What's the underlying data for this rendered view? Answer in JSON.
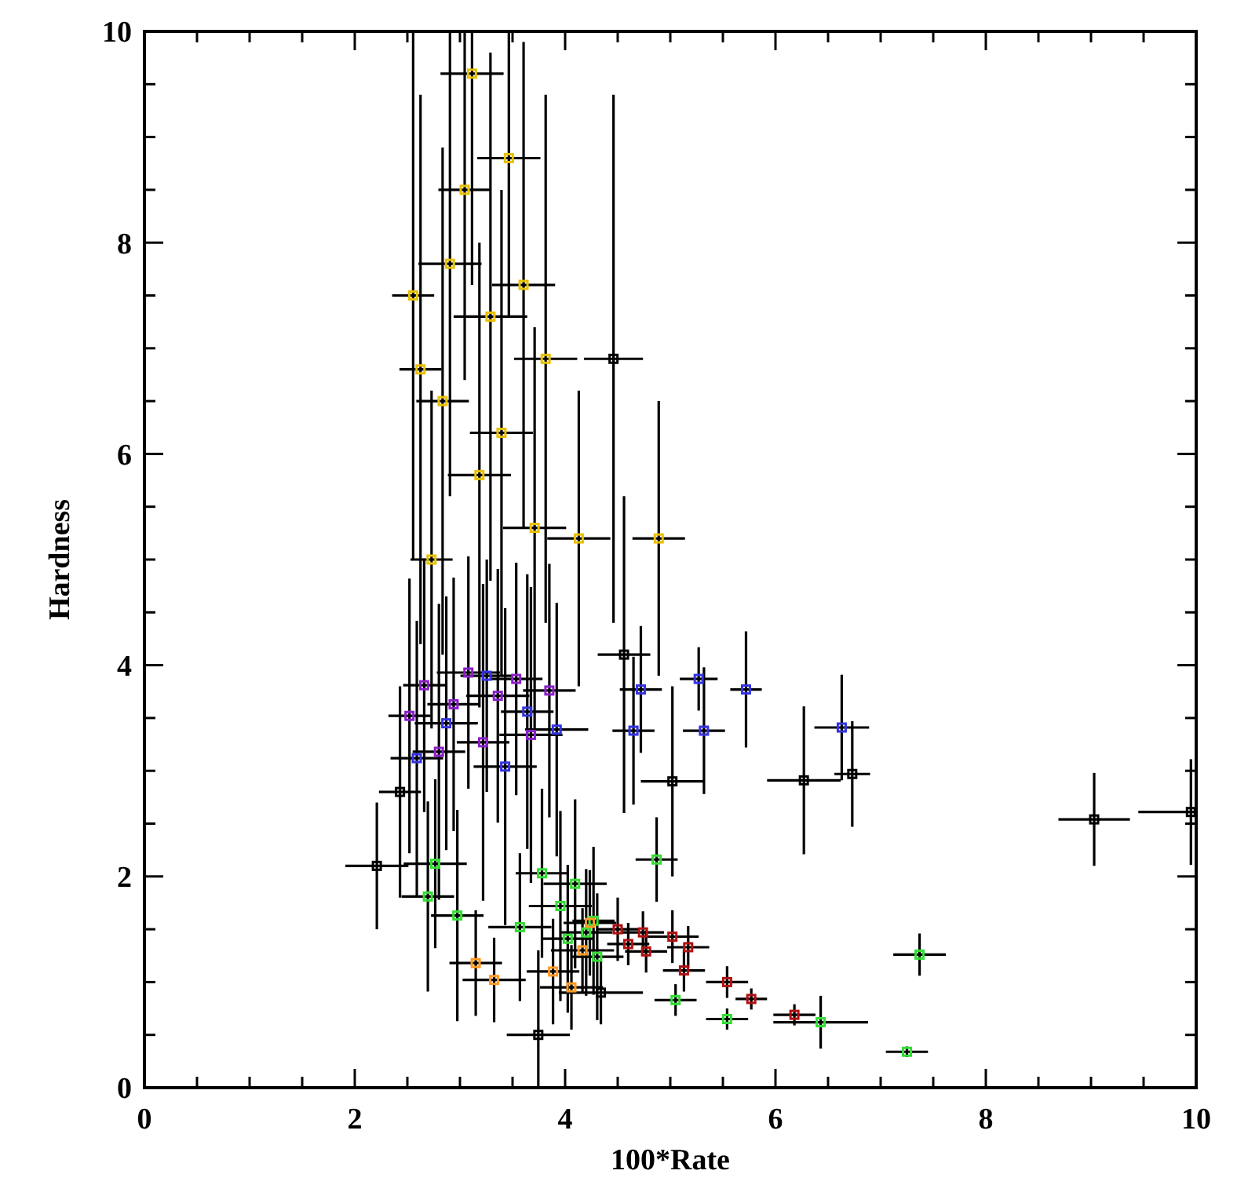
{
  "chart_data": {
    "type": "scatter",
    "xlabel": "100*Rate",
    "ylabel": "Hardness",
    "xlim": [
      0,
      10
    ],
    "ylim": [
      0,
      10
    ],
    "marker": "square",
    "grid": false,
    "xticks": [
      0,
      {
        "value": 0.5,
        "label": null
      },
      {
        "value": 1,
        "label": null
      },
      {
        "value": 1.5,
        "label": null
      },
      2,
      {
        "value": 2.5,
        "label": null
      },
      {
        "value": 3,
        "label": null
      },
      {
        "value": 3.5,
        "label": null
      },
      4,
      {
        "value": 4.5,
        "label": null
      },
      {
        "value": 5,
        "label": null
      },
      {
        "value": 5.5,
        "label": null
      },
      6,
      {
        "value": 6.5,
        "label": null
      },
      {
        "value": 7,
        "label": null
      },
      {
        "value": 7.5,
        "label": null
      },
      8,
      {
        "value": 8.5,
        "label": null
      },
      {
        "value": 9,
        "label": null
      },
      {
        "value": 9.5,
        "label": null
      },
      10
    ],
    "yticks": [
      0,
      {
        "value": 0.5,
        "label": null
      },
      {
        "value": 1,
        "label": null
      },
      {
        "value": 1.5,
        "label": null
      },
      2,
      {
        "value": 2.5,
        "label": null
      },
      {
        "value": 3,
        "label": null
      },
      {
        "value": 3.5,
        "label": null
      },
      4,
      {
        "value": 4.5,
        "label": null
      },
      {
        "value": 5,
        "label": null
      },
      {
        "value": 5.5,
        "label": null
      },
      6,
      {
        "value": 6.5,
        "label": null
      },
      {
        "value": 7,
        "label": null
      },
      {
        "value": 7.5,
        "label": null
      },
      8,
      {
        "value": 8.5,
        "label": null
      },
      {
        "value": 9,
        "label": null
      },
      {
        "value": 9.5,
        "label": null
      },
      10
    ],
    "series": [
      {
        "color": "#000000",
        "x": [
          6.27,
          6.73,
          9.03,
          9.95,
          4.46,
          2.21,
          3.745,
          4.34,
          2.43,
          5.02,
          4.56
        ],
        "values": [
          2.91,
          2.97,
          2.54,
          2.61,
          6.9,
          2.1,
          0.5,
          0.9,
          2.8,
          2.9,
          4.1
        ],
        "xerrors": [
          0.35,
          0.17,
          0.34,
          [
            9.45,
            10
          ],
          0.28,
          0.3,
          0.3,
          0.4,
          0.2,
          0.3,
          0.25
        ],
        "errors": [
          0.7,
          0.5,
          0.44,
          0.5,
          2.5,
          0.6,
          [
            0,
            1.3
          ],
          0.3,
          1.0,
          0.9,
          1.5
        ]
      },
      {
        "color": "#e8c000",
        "x": [
          2.555,
          2.625,
          2.73,
          2.835,
          2.905,
          3.045,
          3.115,
          3.185,
          3.29,
          3.395,
          3.465,
          3.605,
          3.71,
          3.815,
          4.13,
          4.89
        ],
        "values": [
          7.5,
          6.8,
          5.0,
          6.5,
          7.8,
          8.5,
          9.6,
          5.8,
          7.3,
          6.2,
          8.8,
          7.6,
          5.3,
          6.9,
          5.2,
          5.2
        ],
        "xerrors": [
          0.2,
          0.2,
          0.2,
          0.25,
          0.3,
          0.25,
          0.3,
          0.3,
          0.35,
          0.3,
          0.3,
          0.3,
          0.3,
          0.3,
          0.3,
          0.25
        ],
        "errors": [
          2.5,
          2.6,
          1.6,
          2.4,
          2.2,
          [
            6.7,
            10
          ],
          [
            7.6,
            10
          ],
          2.2,
          2.5,
          2.3,
          [
            7.3,
            10
          ],
          2.3,
          1.9,
          2.5,
          1.4,
          1.3
        ]
      },
      {
        "color": "#8a1fc8",
        "x": [
          2.52,
          2.66,
          2.8,
          2.94,
          3.08,
          3.22,
          3.36,
          3.535,
          3.675,
          3.85
        ],
        "values": [
          3.52,
          3.81,
          3.18,
          3.63,
          3.93,
          3.27,
          3.71,
          3.87,
          3.34,
          3.76
        ],
        "xerrors": [
          0.2,
          0.2,
          0.25,
          0.25,
          0.3,
          0.25,
          0.3,
          0.25,
          0.3,
          0.25
        ],
        "errors": [
          1.3,
          1.2,
          1.4,
          1.2,
          1.1,
          1.5,
          1.2,
          1.1,
          1.4,
          1.2
        ]
      },
      {
        "color": "#3333e0",
        "x": [
          2.59,
          2.87,
          3.255,
          3.43,
          3.64,
          3.92,
          4.72,
          4.65,
          5.27,
          5.32,
          5.72,
          6.63
        ],
        "values": [
          3.12,
          3.45,
          3.9,
          3.04,
          3.56,
          3.39,
          3.77,
          3.38,
          3.87,
          3.38,
          3.77,
          3.41
        ],
        "xerrors": [
          0.25,
          0.3,
          0.25,
          0.3,
          0.25,
          0.3,
          0.2,
          0.2,
          0.18,
          0.2,
          0.15,
          0.26
        ],
        "errors": [
          1.3,
          1.2,
          1.1,
          1.5,
          1.3,
          1.2,
          0.6,
          0.7,
          0.3,
          0.6,
          0.55,
          0.5
        ]
      },
      {
        "color": "#33dd33",
        "x": [
          2.695,
          2.765,
          2.975,
          3.57,
          3.78,
          3.955,
          4.025,
          4.095,
          4.2,
          4.27,
          4.305,
          7.37,
          7.25,
          6.43,
          5.54,
          5.05,
          4.87
        ],
        "values": [
          1.81,
          2.12,
          1.63,
          1.52,
          2.03,
          1.72,
          1.41,
          1.93,
          1.47,
          1.58,
          1.24,
          1.26,
          0.34,
          0.62,
          0.65,
          0.83,
          2.16
        ],
        "xerrors": [
          0.25,
          0.3,
          0.25,
          0.3,
          0.25,
          0.3,
          0.25,
          0.3,
          0.25,
          0.2,
          0.25,
          0.25,
          0.2,
          0.45,
          0.2,
          0.2,
          0.2
        ],
        "errors": [
          0.9,
          0.8,
          1.0,
          0.7,
          0.8,
          0.9,
          0.7,
          0.8,
          0.6,
          0.7,
          0.6,
          0.2,
          0.05,
          0.25,
          0.1,
          0.15,
          0.4
        ]
      },
      {
        "color": "#ff9922",
        "x": [
          3.15,
          3.325,
          3.885,
          4.06,
          4.235,
          4.165
        ],
        "values": [
          1.18,
          1.02,
          1.1,
          0.95,
          1.56,
          1.3
        ],
        "xerrors": [
          0.25,
          0.3,
          0.25,
          0.3,
          0.25,
          0.3
        ],
        "errors": [
          0.5,
          0.4,
          0.5,
          0.4,
          0.5,
          0.4
        ]
      },
      {
        "color": "#b01010",
        "x": [
          6.18,
          5.77,
          5.54,
          5.13,
          5.17,
          4.77,
          5.02,
          4.74,
          4.6,
          4.5
        ],
        "values": [
          0.69,
          0.84,
          1.0,
          1.11,
          1.33,
          1.29,
          1.43,
          1.47,
          1.36,
          1.5
        ],
        "xerrors": [
          0.2,
          0.15,
          0.2,
          0.2,
          0.2,
          0.2,
          0.25,
          0.2,
          0.2,
          0.2
        ],
        "errors": [
          0.1,
          0.1,
          0.15,
          0.2,
          0.2,
          0.2,
          0.25,
          0.2,
          0.2,
          0.3
        ]
      }
    ]
  }
}
